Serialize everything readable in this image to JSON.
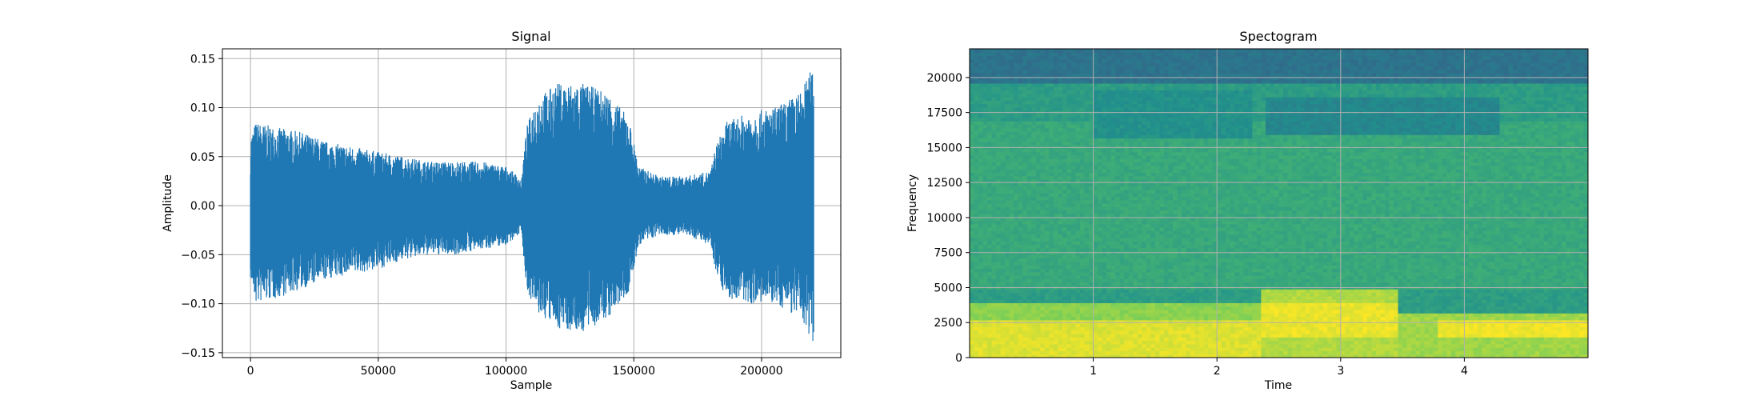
{
  "chart_data": [
    {
      "type": "line",
      "title": "Signal",
      "xlabel": "Sample",
      "ylabel": "Amplitude",
      "xlim": [
        -11000,
        231000
      ],
      "ylim": [
        -0.155,
        0.16
      ],
      "xticks": [
        0,
        50000,
        100000,
        150000,
        200000
      ],
      "xtick_labels": [
        "0",
        "50000",
        "100000",
        "150000",
        "200000"
      ],
      "yticks": [
        -0.15,
        -0.1,
        -0.05,
        0.0,
        0.05,
        0.1,
        0.15
      ],
      "ytick_labels": [
        "−0.15",
        "−0.10",
        "−0.05",
        "0.00",
        "0.05",
        "0.10",
        "0.15"
      ],
      "grid": true,
      "color": "#1f77b4",
      "series": [
        {
          "envelope": {
            "x": [
              0,
              2000,
              10000,
              20000,
              30000,
              40000,
              50000,
              60000,
              70000,
              80000,
              90000,
              100000,
              105000,
              106000,
              108000,
              112000,
              120000,
              130000,
              140000,
              148000,
              152000,
              160000,
              170000,
              180000,
              182000,
              186000,
              195000,
              205000,
              215000,
              220500
            ],
            "upper": [
              0.07,
              0.085,
              0.08,
              0.075,
              0.065,
              0.06,
              0.055,
              0.05,
              0.045,
              0.045,
              0.045,
              0.04,
              0.03,
              0.025,
              0.08,
              0.11,
              0.125,
              0.125,
              0.115,
              0.09,
              0.04,
              0.03,
              0.03,
              0.035,
              0.06,
              0.085,
              0.095,
              0.1,
              0.115,
              0.145
            ],
            "lower": [
              -0.075,
              -0.1,
              -0.095,
              -0.085,
              -0.075,
              -0.07,
              -0.065,
              -0.055,
              -0.05,
              -0.05,
              -0.045,
              -0.04,
              -0.03,
              -0.025,
              -0.085,
              -0.11,
              -0.125,
              -0.13,
              -0.115,
              -0.09,
              -0.04,
              -0.03,
              -0.03,
              -0.04,
              -0.065,
              -0.095,
              -0.1,
              -0.1,
              -0.115,
              -0.14
            ]
          }
        }
      ]
    },
    {
      "type": "heatmap",
      "title": "Spectogram",
      "xlabel": "Time",
      "ylabel": "Frequency",
      "xlim": [
        0,
        5.0
      ],
      "ylim": [
        0,
        22050
      ],
      "xticks": [
        1,
        2,
        3,
        4
      ],
      "xtick_labels": [
        "1",
        "2",
        "3",
        "4"
      ],
      "yticks": [
        0,
        2500,
        5000,
        7500,
        10000,
        12500,
        15000,
        17500,
        20000
      ],
      "ytick_labels": [
        "0",
        "2500",
        "5000",
        "7500",
        "10000",
        "12500",
        "15000",
        "17500",
        "20000"
      ],
      "grid": true,
      "colormap": "viridis",
      "regions": [
        {
          "t0": 0.0,
          "t1": 5.0,
          "f0": 0,
          "f1": 22050,
          "level": 0.55
        },
        {
          "t0": 0.0,
          "t1": 5.0,
          "f0": 19500,
          "f1": 22050,
          "level": 0.38
        },
        {
          "t0": 0.0,
          "t1": 5.0,
          "f0": 5000,
          "f1": 17000,
          "level": 0.6
        },
        {
          "t0": 0.0,
          "t1": 2.35,
          "f0": 0,
          "f1": 4000,
          "level": 0.82
        },
        {
          "t0": 0.0,
          "t1": 2.35,
          "f0": 0,
          "f1": 2800,
          "level": 0.95
        },
        {
          "t0": 2.35,
          "t1": 3.45,
          "f0": 0,
          "f1": 5000,
          "level": 0.88
        },
        {
          "t0": 2.35,
          "t1": 3.45,
          "f0": 1500,
          "f1": 4000,
          "level": 0.97
        },
        {
          "t0": 3.45,
          "t1": 5.0,
          "f0": 0,
          "f1": 3200,
          "level": 0.85
        },
        {
          "t0": 3.8,
          "t1": 5.0,
          "f0": 1500,
          "f1": 2600,
          "level": 0.98
        },
        {
          "t0": 1.0,
          "t1": 2.3,
          "f0": 15800,
          "f1": 19000,
          "level": 0.5
        },
        {
          "t0": 2.4,
          "t1": 4.3,
          "f0": 16000,
          "f1": 18500,
          "level": 0.46
        }
      ]
    }
  ]
}
